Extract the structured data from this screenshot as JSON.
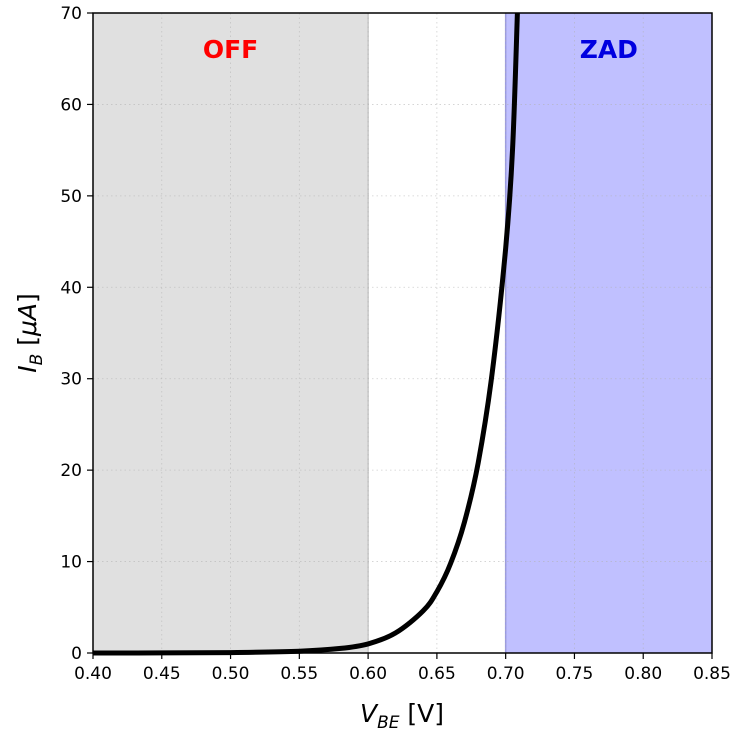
{
  "chart_data": {
    "type": "line",
    "xlabel": {
      "main": "V",
      "sub": "BE",
      "unit": " [V]"
    },
    "ylabel": {
      "main": "I",
      "sub": "B",
      "unit_open": " [",
      "unit_mu": "μA",
      "unit_close": "]"
    },
    "xlim": [
      0.4,
      0.85
    ],
    "ylim": [
      0,
      70
    ],
    "x_ticks": [
      "0.40",
      "0.45",
      "0.50",
      "0.55",
      "0.60",
      "0.65",
      "0.70",
      "0.75",
      "0.80",
      "0.85"
    ],
    "y_ticks": [
      "0",
      "10",
      "20",
      "30",
      "40",
      "50",
      "60",
      "70"
    ],
    "grid": true,
    "regions": [
      {
        "name": "OFF",
        "x_start": 0.4,
        "x_end": 0.6,
        "color": "#e0e0e0",
        "label_color": "#ff0000"
      },
      {
        "name": "ZAD",
        "x_start": 0.7,
        "x_end": 0.85,
        "color": "#c0c0ff",
        "label_color": "#0000e0"
      }
    ],
    "series": [
      {
        "color": "#000000",
        "points": [
          [
            0.4,
            0.0
          ],
          [
            0.45,
            0.01
          ],
          [
            0.5,
            0.04
          ],
          [
            0.55,
            0.2
          ],
          [
            0.58,
            0.5
          ],
          [
            0.6,
            1.0
          ],
          [
            0.62,
            2.2
          ],
          [
            0.64,
            4.6
          ],
          [
            0.65,
            6.7
          ],
          [
            0.66,
            9.8
          ],
          [
            0.67,
            14.3
          ],
          [
            0.68,
            20.8
          ],
          [
            0.69,
            30.4
          ],
          [
            0.7,
            44.3
          ],
          [
            0.705,
            55.0
          ],
          [
            0.7085,
            70.0
          ]
        ]
      }
    ]
  }
}
